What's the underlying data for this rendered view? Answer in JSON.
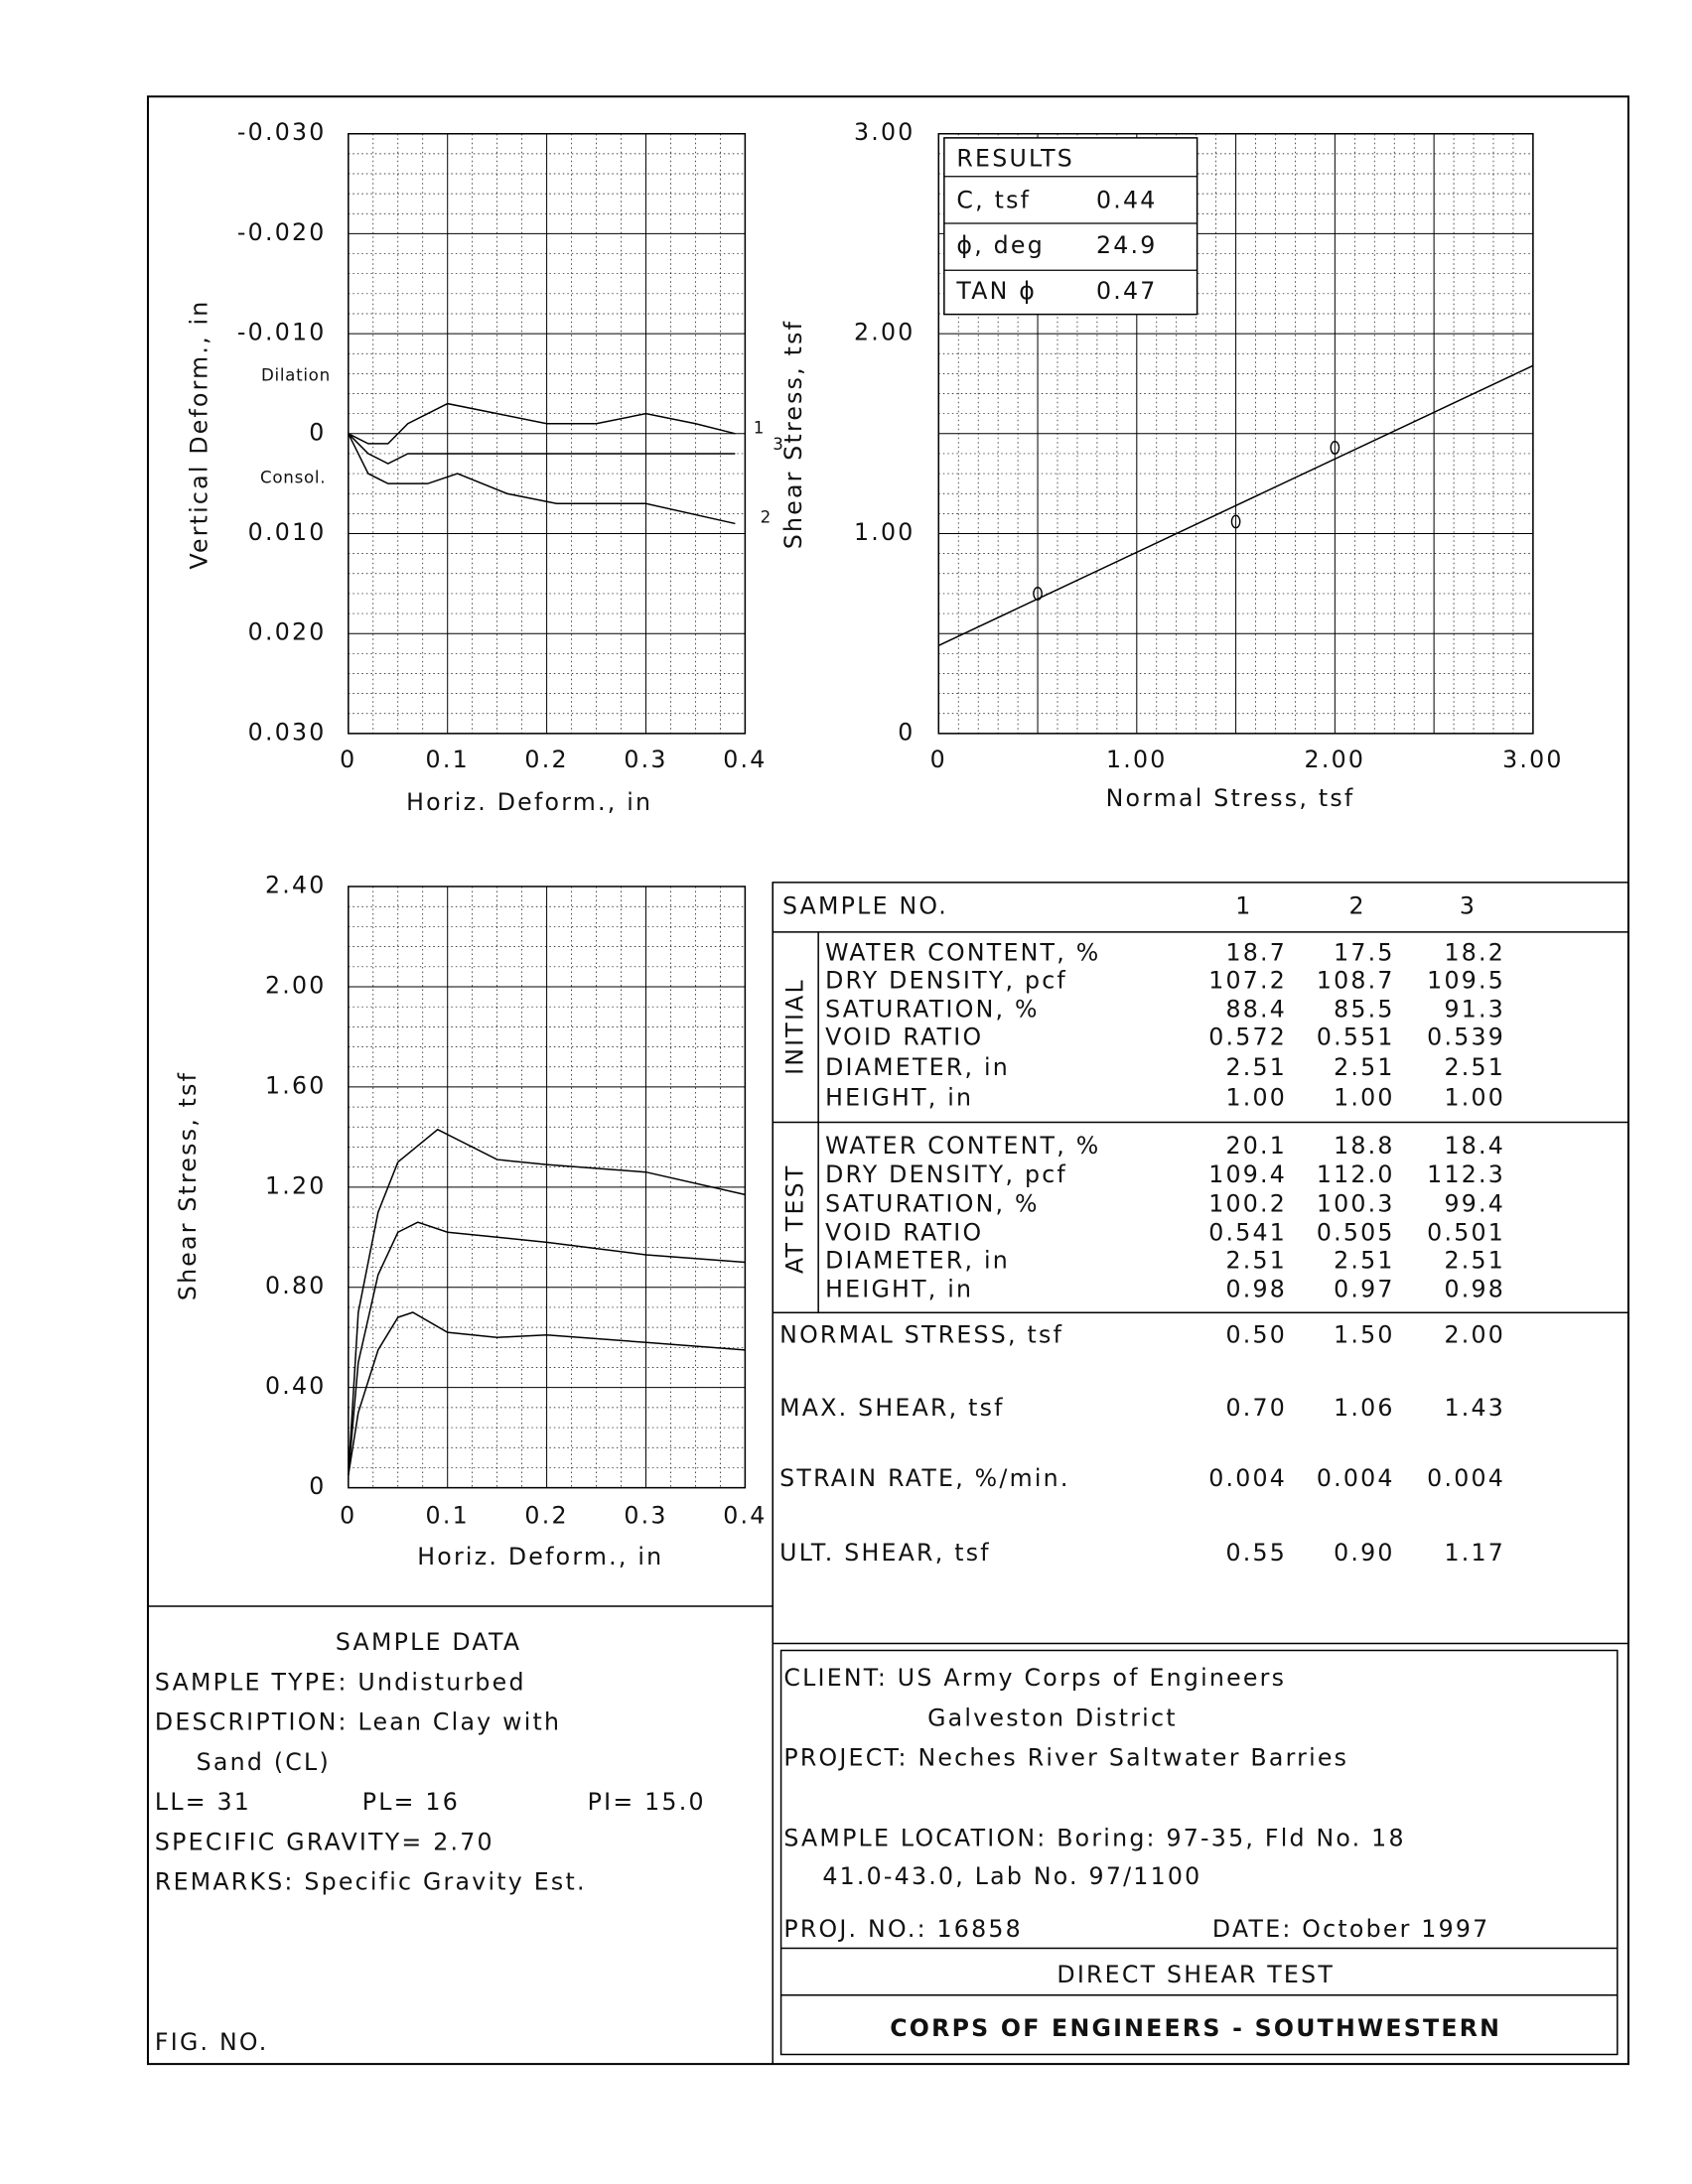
{
  "chart_data": [
    {
      "type": "line",
      "y_label": "Vertical Deform., in",
      "x_label": "Horiz. Deform., in",
      "annotations": [
        "Dilation",
        "Consol."
      ],
      "xlim": [
        0,
        0.4
      ],
      "ylim": [
        -0.03,
        0.03
      ],
      "y_inverted": true,
      "grid": true,
      "xticks": [
        0,
        0.1,
        0.2,
        0.3,
        0.4
      ],
      "yticks": [
        {
          "value": -0.03,
          "label": "-0.030"
        },
        {
          "value": -0.02,
          "label": "-0.020"
        },
        {
          "value": -0.01,
          "label": "-0.010"
        },
        0,
        {
          "value": 0.01,
          "label": "0.010"
        },
        {
          "value": 0.02,
          "label": "0.020"
        },
        {
          "value": 0.03,
          "label": "0.030"
        }
      ],
      "series": [
        {
          "name": "1",
          "color": "#000000",
          "x": [
            0,
            0.02,
            0.04,
            0.06,
            0.1,
            0.15,
            0.2,
            0.25,
            0.3,
            0.35,
            0.39
          ],
          "values": [
            0,
            0.001,
            0.001,
            -0.001,
            -0.003,
            -0.002,
            -0.001,
            -0.001,
            -0.002,
            -0.001,
            0
          ]
        },
        {
          "name": "3",
          "color": "#000000",
          "x": [
            0,
            0.02,
            0.04,
            0.06,
            0.1,
            0.2,
            0.3,
            0.39
          ],
          "values": [
            0,
            0.002,
            0.003,
            0.002,
            0.002,
            0.002,
            0.002,
            0.002
          ]
        },
        {
          "name": "2",
          "color": "#000000",
          "x": [
            0,
            0.02,
            0.04,
            0.08,
            0.11,
            0.16,
            0.21,
            0.3,
            0.39
          ],
          "values": [
            0,
            0.004,
            0.005,
            0.005,
            0.004,
            0.006,
            0.007,
            0.007,
            0.009
          ]
        }
      ]
    },
    {
      "type": "scatter",
      "y_label": "Shear Stress, tsf",
      "x_label": "Normal Stress,  tsf",
      "xlim": [
        0,
        3
      ],
      "ylim": [
        0,
        3
      ],
      "grid": true,
      "xticks": [
        0,
        {
          "value": 1,
          "label": "1.00"
        },
        {
          "value": 2,
          "label": "2.00"
        },
        {
          "value": 3,
          "label": "3.00"
        }
      ],
      "yticks": [
        0,
        {
          "value": 1,
          "label": "1.00"
        },
        {
          "value": 2,
          "label": "2.00"
        },
        {
          "value": 3,
          "label": "3.00"
        }
      ],
      "series": [
        {
          "color": "#000000",
          "x": [
            0.5,
            1.5,
            2.0
          ],
          "values": [
            0.7,
            1.06,
            1.43
          ]
        }
      ],
      "fit": {
        "color": "#000000",
        "x": [
          0,
          3
        ],
        "values": [
          0.44,
          1.84
        ]
      }
    },
    {
      "type": "line",
      "y_label": "Shear Stress, tsf",
      "x_label": "Horiz. Deform.,  in",
      "xlim": [
        0,
        0.4
      ],
      "ylim": [
        0,
        2.4
      ],
      "grid": true,
      "xticks": [
        0,
        0.1,
        0.2,
        0.3,
        0.4
      ],
      "yticks": [
        0,
        {
          "value": 0.4,
          "label": "0.40"
        },
        {
          "value": 0.8,
          "label": "0.80"
        },
        {
          "value": 1.2,
          "label": "1.20"
        },
        {
          "value": 1.6,
          "label": "1.60"
        },
        {
          "value": 2.0,
          "label": "2.00"
        },
        {
          "value": 2.4,
          "label": "2.40"
        }
      ],
      "series": [
        {
          "color": "#000000",
          "x": [
            0,
            0.01,
            0.03,
            0.05,
            0.09,
            0.15,
            0.2,
            0.3,
            0.4
          ],
          "values": [
            0.05,
            0.7,
            1.1,
            1.3,
            1.43,
            1.31,
            1.29,
            1.26,
            1.17
          ]
        },
        {
          "color": "#000000",
          "x": [
            0,
            0.01,
            0.03,
            0.05,
            0.07,
            0.1,
            0.15,
            0.2,
            0.3,
            0.4
          ],
          "values": [
            0.05,
            0.5,
            0.85,
            1.02,
            1.06,
            1.02,
            1.0,
            0.98,
            0.93,
            0.9
          ]
        },
        {
          "color": "#000000",
          "x": [
            0,
            0.01,
            0.03,
            0.05,
            0.065,
            0.1,
            0.15,
            0.2,
            0.3,
            0.4
          ],
          "values": [
            0.05,
            0.3,
            0.55,
            0.68,
            0.7,
            0.62,
            0.6,
            0.61,
            0.58,
            0.55
          ]
        }
      ]
    }
  ],
  "results": {
    "title": "RESULTS",
    "rows": [
      [
        "C, tsf",
        "0.44"
      ],
      [
        "ϕ, deg",
        "24.9"
      ],
      [
        "TAN ϕ",
        "0.47"
      ]
    ]
  },
  "table": {
    "header": [
      "SAMPLE NO.",
      "1",
      "2",
      "3"
    ],
    "groups": [
      {
        "label": "INITIAL",
        "rows": [
          [
            "WATER CONTENT, %",
            "18.7",
            "17.5",
            "18.2"
          ],
          [
            "DRY DENSITY, pcf",
            "107.2",
            "108.7",
            "109.5"
          ],
          [
            "SATURATION, %",
            "88.4",
            "85.5",
            "91.3"
          ],
          [
            "VOID RATIO",
            "0.572",
            "0.551",
            "0.539"
          ],
          [
            "DIAMETER, in",
            "2.51",
            "2.51",
            "2.51"
          ],
          [
            "HEIGHT, in",
            "1.00",
            "1.00",
            "1.00"
          ]
        ]
      },
      {
        "label": "AT TEST",
        "rows": [
          [
            "WATER CONTENT, %",
            "20.1",
            "18.8",
            "18.4"
          ],
          [
            "DRY DENSITY, pcf",
            "109.4",
            "112.0",
            "112.3"
          ],
          [
            "SATURATION, %",
            "100.2",
            "100.3",
            "99.4"
          ],
          [
            "VOID RATIO",
            "0.541",
            "0.505",
            "0.501"
          ],
          [
            "DIAMETER, in",
            "2.51",
            "2.51",
            "2.51"
          ],
          [
            "HEIGHT, in",
            "0.98",
            "0.97",
            "0.98"
          ]
        ]
      }
    ],
    "rows": [
      [
        "NORMAL STRESS, tsf",
        "0.50",
        "1.50",
        "2.00"
      ],
      [
        "MAX. SHEAR, tsf",
        "0.70",
        "1.06",
        "1.43"
      ],
      [
        "STRAIN RATE, %/min.",
        "0.004",
        "0.004",
        "0.004"
      ],
      [
        "ULT. SHEAR, tsf",
        "0.55",
        "0.90",
        "1.17"
      ]
    ]
  },
  "sample_data": {
    "title": "SAMPLE DATA",
    "lines": [
      "SAMPLE TYPE: Undisturbed",
      "DESCRIPTION: Lean Clay with",
      "Sand (CL)"
    ],
    "ll": "LL= 31",
    "pl": "PL= 16",
    "pi": "PI= 15.0",
    "more": [
      "SPECIFIC GRAVITY= 2.70",
      "REMARKS: Specific Gravity Est."
    ],
    "fig_no": "FIG. NO."
  },
  "info": {
    "client": [
      "CLIENT: US Army Corps of Engineers",
      "Galveston District"
    ],
    "project": "PROJECT: Neches River Saltwater Barries",
    "location": [
      "SAMPLE LOCATION: Boring: 97-35, Fld No. 18",
      "41.0-43.0, Lab No. 97/1100"
    ],
    "proj_no": "PROJ. NO.: 16858",
    "date": "DATE: October 1997",
    "test": "DIRECT SHEAR TEST",
    "company": "CORPS OF ENGINEERS - SOUTHWESTERN"
  }
}
